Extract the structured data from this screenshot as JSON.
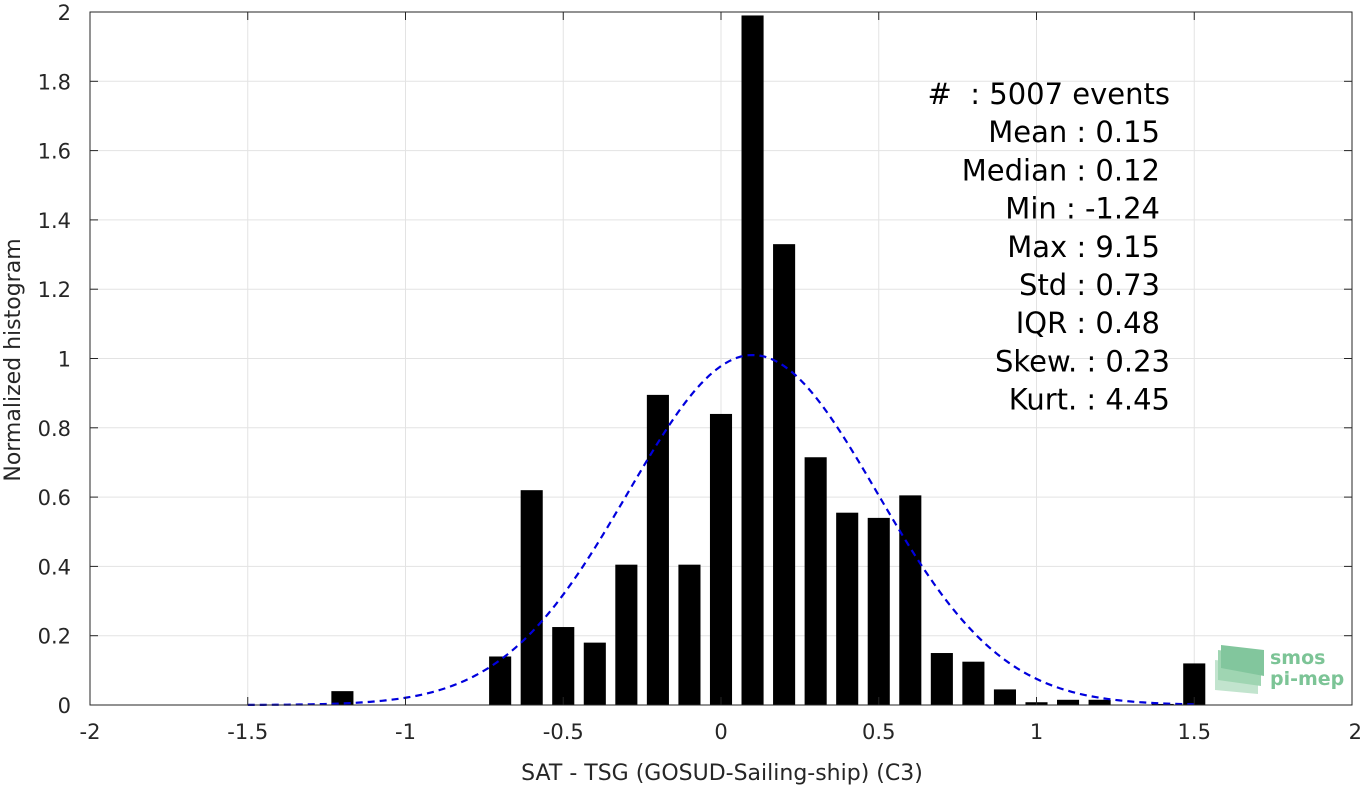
{
  "chart_data": {
    "type": "bar",
    "xlabel": "SAT - TSG (GOSUD-Sailing-ship) (C3)",
    "ylabel": "Normalized histogram",
    "xlim": [
      -2,
      2
    ],
    "ylim": [
      0,
      2
    ],
    "xticks": [
      -2,
      -1.5,
      -1,
      -0.5,
      0,
      0.5,
      1,
      1.5,
      2
    ],
    "xtick_labels": [
      "-2",
      "-1.5",
      "-1",
      "-0.5",
      "0",
      "0.5",
      "1",
      "1.5",
      "2"
    ],
    "yticks": [
      0,
      0.2,
      0.4,
      0.6,
      0.8,
      1,
      1.2,
      1.4,
      1.6,
      1.8,
      2
    ],
    "ytick_labels": [
      "0",
      "0.2",
      "0.4",
      "0.6",
      "0.8",
      "1",
      "1.2",
      "1.4",
      "1.6",
      "1.8",
      "2"
    ],
    "grid": true,
    "bin_width": 0.1,
    "bars": [
      {
        "x": -1.2,
        "value": 0.04
      },
      {
        "x": -0.7,
        "value": 0.14
      },
      {
        "x": -0.6,
        "value": 0.62
      },
      {
        "x": -0.5,
        "value": 0.225
      },
      {
        "x": -0.4,
        "value": 0.18
      },
      {
        "x": -0.3,
        "value": 0.405
      },
      {
        "x": -0.2,
        "value": 0.895
      },
      {
        "x": -0.1,
        "value": 0.405
      },
      {
        "x": 0.0,
        "value": 0.84
      },
      {
        "x": 0.1,
        "value": 1.99
      },
      {
        "x": 0.2,
        "value": 1.33
      },
      {
        "x": 0.3,
        "value": 0.715
      },
      {
        "x": 0.4,
        "value": 0.555
      },
      {
        "x": 0.5,
        "value": 0.54
      },
      {
        "x": 0.6,
        "value": 0.605
      },
      {
        "x": 0.7,
        "value": 0.15
      },
      {
        "x": 0.8,
        "value": 0.125
      },
      {
        "x": 0.9,
        "value": 0.045
      },
      {
        "x": 1.0,
        "value": 0.008
      },
      {
        "x": 1.1,
        "value": 0.015
      },
      {
        "x": 1.2,
        "value": 0.015
      },
      {
        "x": 1.4,
        "value": 0.003
      },
      {
        "x": 1.5,
        "value": 0.12
      }
    ],
    "fit_curve": {
      "style": "dashed",
      "color": "#0000dd",
      "mean": 0.1,
      "sigma": 0.395,
      "peak": 1.01,
      "x_range": [
        -1.5,
        1.5
      ]
    },
    "bar_color": "#000000",
    "stats_text": [
      "#  : 5007 events",
      "Mean : 0.15",
      "Median : 0.12",
      "Min : -1.24",
      "Max : 9.15",
      "Std : 0.73",
      "IQR : 0.48",
      "Skew. : 0.23",
      "Kurt. : 4.45"
    ]
  },
  "logo": {
    "line1": "smos",
    "line2": "pi-mep",
    "color": "#5fb87f"
  }
}
